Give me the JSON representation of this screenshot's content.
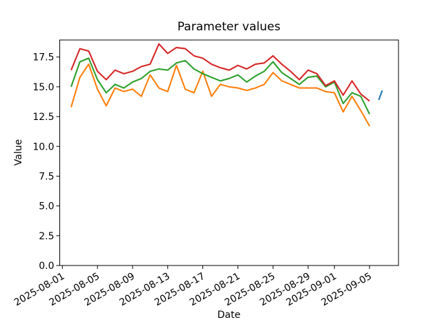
{
  "figure": {
    "title": "Parameter values",
    "xlabel": "Date",
    "ylabel": "Value"
  },
  "chart_data": {
    "type": "line",
    "title": "Parameter values",
    "xlabel": "Date",
    "ylabel": "Value",
    "grid": false,
    "legend": "none",
    "x_unit": "days since 2025-08-01",
    "xlim_days": [
      -0.3,
      38.3
    ],
    "ylim": [
      0,
      18.93
    ],
    "x_ticks": {
      "offsets": [
        0,
        4,
        8,
        12,
        16,
        20,
        24,
        28,
        31,
        35
      ],
      "labels": [
        "2025-08-01",
        "2025-08-05",
        "2025-08-09",
        "2025-08-13",
        "2025-08-17",
        "2025-08-21",
        "2025-08-25",
        "2025-08-29",
        "2025-09-01",
        "2025-09-05"
      ],
      "rotation_deg": 30
    },
    "y_ticks": {
      "values": [
        0,
        2.5,
        5,
        7.5,
        10,
        12.5,
        15,
        17.5
      ],
      "labels": [
        "0.0",
        "2.5",
        "5.0",
        "7.5",
        "10.0",
        "12.5",
        "15.0",
        "17.5"
      ]
    },
    "dates": [
      "2025-08-02",
      "2025-08-03",
      "2025-08-04",
      "2025-08-05",
      "2025-08-06",
      "2025-08-07",
      "2025-08-08",
      "2025-08-09",
      "2025-08-10",
      "2025-08-11",
      "2025-08-12",
      "2025-08-13",
      "2025-08-14",
      "2025-08-15",
      "2025-08-16",
      "2025-08-17",
      "2025-08-18",
      "2025-08-19",
      "2025-08-20",
      "2025-08-21",
      "2025-08-22",
      "2025-08-23",
      "2025-08-24",
      "2025-08-25",
      "2025-08-26",
      "2025-08-27",
      "2025-08-28",
      "2025-08-29",
      "2025-08-30",
      "2025-08-31",
      "2025-09-01",
      "2025-09-02",
      "2025-09-03",
      "2025-09-04",
      "2025-09-05"
    ],
    "series": [
      {
        "name": "blue-series",
        "color": "#1f77b4",
        "x": [
          36.05,
          36.45
        ],
        "values": [
          13.9,
          14.7
        ]
      },
      {
        "name": "orange-series",
        "color": "#ff7f0e",
        "x": [
          1,
          2,
          3,
          4,
          5,
          6,
          7,
          8,
          9,
          10,
          11,
          12,
          13,
          14,
          15,
          16,
          17,
          18,
          19,
          20,
          21,
          22,
          23,
          24,
          25,
          26,
          27,
          28,
          29,
          30,
          31,
          32,
          33,
          34,
          35
        ],
        "values": [
          13.3,
          15.8,
          16.9,
          14.8,
          13.4,
          14.9,
          14.6,
          14.8,
          14.2,
          16.0,
          14.9,
          14.6,
          16.8,
          14.8,
          14.5,
          16.3,
          14.2,
          15.2,
          15.0,
          14.9,
          14.7,
          14.9,
          15.2,
          16.2,
          15.5,
          15.2,
          14.9,
          14.9,
          14.9,
          14.6,
          14.5,
          12.9,
          14.2,
          13.0,
          11.7
        ]
      },
      {
        "name": "green-series",
        "color": "#2ca02c",
        "x": [
          1,
          2,
          3,
          4,
          5,
          6,
          7,
          8,
          9,
          10,
          11,
          12,
          13,
          14,
          15,
          16,
          17,
          18,
          19,
          20,
          21,
          22,
          23,
          24,
          25,
          26,
          27,
          28,
          29,
          30,
          31,
          32,
          33,
          34,
          35
        ],
        "values": [
          15.0,
          17.1,
          17.4,
          15.6,
          14.5,
          15.2,
          14.9,
          15.4,
          15.7,
          16.3,
          16.5,
          16.4,
          17.0,
          17.2,
          16.5,
          16.1,
          15.8,
          15.5,
          15.7,
          16.0,
          15.4,
          15.9,
          16.3,
          17.1,
          16.2,
          15.7,
          15.2,
          15.8,
          15.9,
          15.0,
          15.4,
          13.6,
          14.5,
          14.2,
          12.7
        ]
      },
      {
        "name": "red-series",
        "color": "#d62728",
        "x": [
          1,
          2,
          3,
          4,
          5,
          6,
          7,
          8,
          9,
          10,
          11,
          12,
          13,
          14,
          15,
          16,
          17,
          18,
          19,
          20,
          21,
          22,
          23,
          24,
          25,
          26,
          27,
          28,
          29,
          30,
          31,
          32,
          33,
          34,
          35
        ],
        "values": [
          16.4,
          18.2,
          18.0,
          16.3,
          15.6,
          16.4,
          16.1,
          16.3,
          16.7,
          16.9,
          18.6,
          17.8,
          18.3,
          18.2,
          17.6,
          17.4,
          16.9,
          16.6,
          16.4,
          16.8,
          16.5,
          16.9,
          17.0,
          17.6,
          16.9,
          16.3,
          15.6,
          16.4,
          16.1,
          15.1,
          15.5,
          14.3,
          15.5,
          14.4,
          13.8
        ]
      }
    ]
  }
}
